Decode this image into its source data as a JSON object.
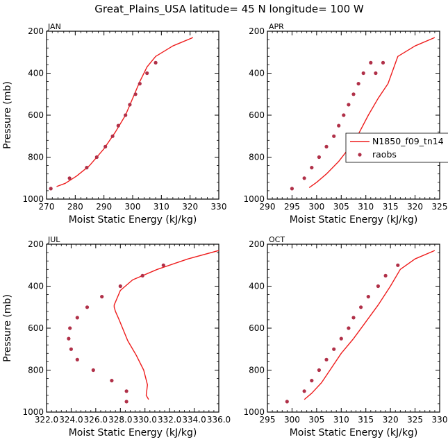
{
  "figure_title": "Great_Plains_USA  latitude= 45 N longitude= 100 W",
  "colors": {
    "model_line": "#ee1c1c",
    "raobs_marker": "#b03048",
    "axis": "#000000"
  },
  "legend": {
    "line_label": "N1850_f09_tn14",
    "marker_label": "raobs"
  },
  "chart_data": [
    {
      "type": "line",
      "panel_label": "JAN",
      "xlabel": "Moist Static Energy (kJ/kg)",
      "ylabel": "Pressure (mb)",
      "xlim": [
        270,
        330
      ],
      "ylim": [
        1000,
        200
      ],
      "xticks": [
        "270",
        "280",
        "290",
        "300",
        "310",
        "320",
        "330"
      ],
      "yticks": [
        "200",
        "400",
        "600",
        "800",
        "1000"
      ],
      "series": [
        {
          "name": "N1850_f09_tn14",
          "style": "line",
          "x": [
            273.5,
            276.5,
            280.5,
            285,
            290,
            294,
            297.5,
            300,
            302.5,
            305,
            308,
            314,
            321
          ],
          "y": [
            940,
            925,
            890,
            840,
            760,
            680,
            600,
            520,
            440,
            370,
            320,
            270,
            230
          ]
        },
        {
          "name": "raobs",
          "style": "markers",
          "x": [
            271.5,
            278,
            284,
            287.5,
            290.5,
            293,
            295,
            297.5,
            299,
            301,
            302.5,
            305,
            308
          ],
          "y": [
            950,
            900,
            850,
            800,
            750,
            700,
            650,
            600,
            550,
            500,
            450,
            400,
            350
          ]
        }
      ]
    },
    {
      "type": "line",
      "panel_label": "APR",
      "xlabel": "Moist Static Energy (kJ/kg)",
      "ylabel": "",
      "xlim": [
        290,
        325
      ],
      "ylim": [
        1000,
        200
      ],
      "xticks": [
        "290",
        "295",
        "300",
        "305",
        "310",
        "315",
        "320",
        "325"
      ],
      "yticks": [
        "200",
        "400",
        "600",
        "800",
        "1000"
      ],
      "series": [
        {
          "name": "N1850_f09_tn14",
          "style": "line",
          "x": [
            298.5,
            300,
            302,
            304.5,
            306.5,
            308.5,
            310.5,
            312.5,
            314.5,
            316.5,
            320,
            324
          ],
          "y": [
            945,
            920,
            880,
            820,
            760,
            690,
            600,
            520,
            450,
            320,
            270,
            230
          ]
        },
        {
          "name": "raobs",
          "style": "markers",
          "x": [
            295,
            297.5,
            299,
            300.5,
            302,
            303.5,
            304.5,
            305.5,
            306.5,
            307.5,
            308.5,
            309.5,
            311,
            312,
            313.5
          ],
          "y": [
            950,
            900,
            850,
            800,
            750,
            700,
            650,
            600,
            550,
            500,
            450,
            400,
            350,
            400,
            350
          ]
        }
      ]
    },
    {
      "type": "line",
      "panel_label": "JUL",
      "xlabel": "Moist Static Energy (kJ/kg)",
      "ylabel": "Pressure (mb)",
      "xlim": [
        322,
        336
      ],
      "ylim": [
        1000,
        200
      ],
      "xticks": [
        "322.0",
        "324.0",
        "326.0",
        "328.0",
        "330.0",
        "332.0",
        "334.0",
        "336.0"
      ],
      "yticks": [
        "200",
        "400",
        "600",
        "800",
        "1000"
      ],
      "series": [
        {
          "name": "N1850_f09_tn14",
          "style": "line",
          "x": [
            330.3,
            330.1,
            330.2,
            329.9,
            329.3,
            328.6,
            327.9,
            327.6,
            327.5,
            327.5,
            328,
            329,
            331,
            333.5,
            336
          ],
          "y": [
            940,
            920,
            870,
            800,
            730,
            660,
            560,
            520,
            500,
            490,
            420,
            370,
            320,
            270,
            230
          ]
        },
        {
          "name": "raobs",
          "style": "markers",
          "x": [
            328.5,
            328.5,
            327.3,
            325.8,
            324.5,
            324,
            323.8,
            323.9,
            324.5,
            325.3,
            326.5,
            328,
            329.8,
            331.5
          ],
          "y": [
            950,
            900,
            850,
            800,
            750,
            700,
            650,
            600,
            550,
            500,
            450,
            400,
            350,
            300
          ]
        }
      ]
    },
    {
      "type": "line",
      "panel_label": "OCT",
      "xlabel": "Moist Static Energy (kJ/kg)",
      "ylabel": "",
      "xlim": [
        295,
        330
      ],
      "ylim": [
        1000,
        200
      ],
      "xticks": [
        "295",
        "300",
        "305",
        "310",
        "315",
        "320",
        "325",
        "330"
      ],
      "yticks": [
        "200",
        "400",
        "600",
        "800",
        "1000"
      ],
      "series": [
        {
          "name": "N1850_f09_tn14",
          "style": "line",
          "x": [
            302.5,
            304,
            306,
            308,
            310,
            312.5,
            315,
            317.5,
            320,
            322,
            325,
            329
          ],
          "y": [
            940,
            910,
            860,
            790,
            720,
            650,
            570,
            490,
            400,
            320,
            270,
            230
          ]
        },
        {
          "name": "raobs",
          "style": "markers",
          "x": [
            299,
            302.5,
            304,
            305.5,
            307,
            308.5,
            310,
            311.5,
            312.5,
            314,
            315.5,
            317.5,
            319,
            321.5
          ],
          "y": [
            950,
            900,
            850,
            800,
            750,
            700,
            650,
            600,
            550,
            500,
            450,
            400,
            350,
            300
          ]
        }
      ]
    }
  ]
}
